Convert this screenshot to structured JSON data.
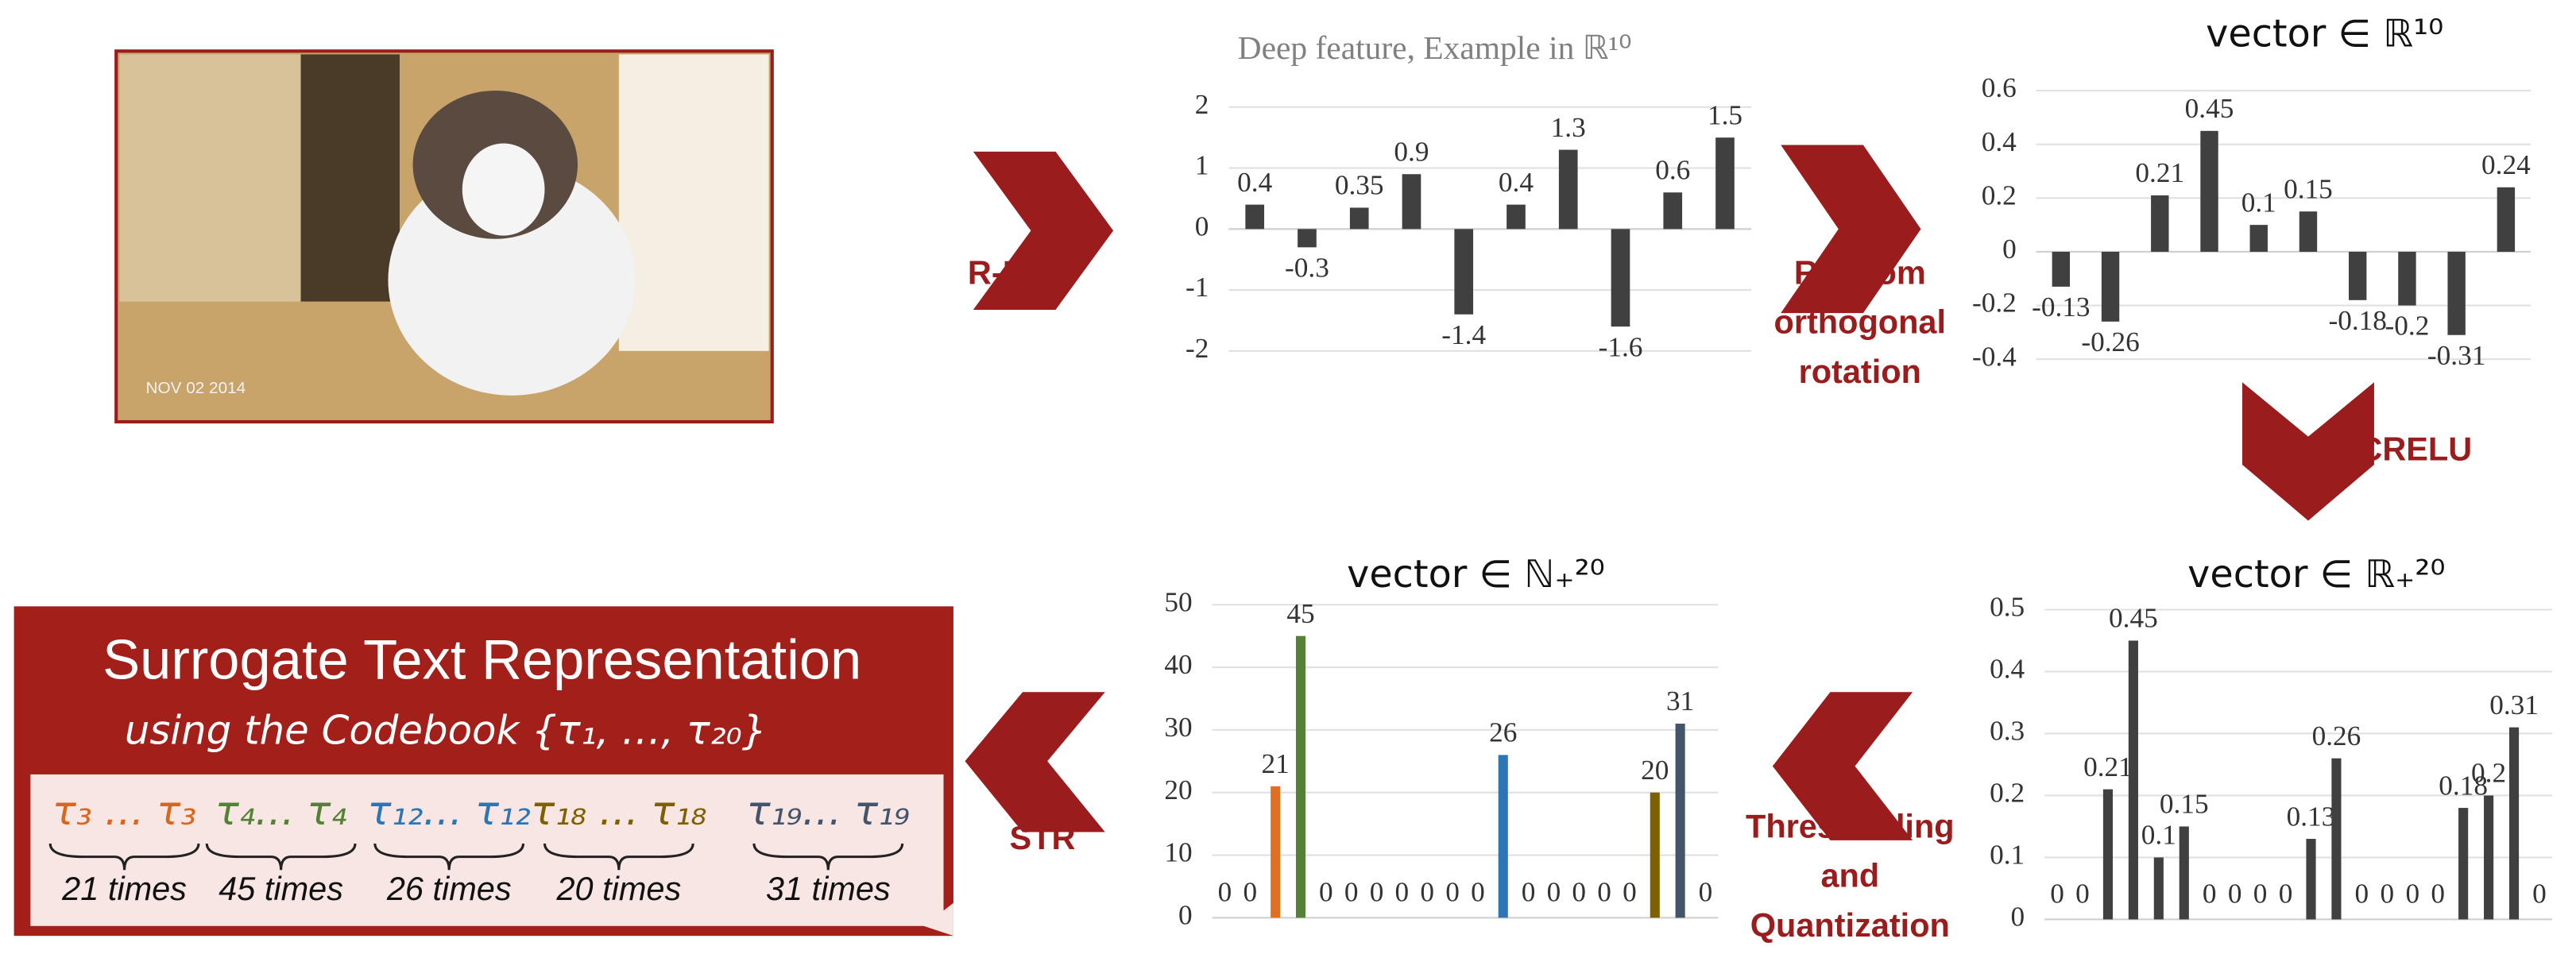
{
  "chart_data": [
    {
      "type": "bar",
      "title": "Deep feature, Example in ℝ¹⁰",
      "values": [
        0.4,
        -0.3,
        0.35,
        0.9,
        -1.4,
        0.4,
        1.3,
        -1.6,
        0.6,
        1.5
      ],
      "color": "#404040",
      "ylim": [
        -2,
        2
      ],
      "yticks": [
        -2,
        -1,
        0,
        1,
        2
      ],
      "grid": true
    },
    {
      "type": "bar",
      "title": "vector ∈ ℝ¹⁰",
      "values": [
        -0.13,
        -0.26,
        0.21,
        0.45,
        0.1,
        0.15,
        -0.18,
        -0.2,
        -0.31,
        0.24
      ],
      "color": "#404040",
      "ylim": [
        -0.4,
        0.6
      ],
      "yticks": [
        -0.4,
        -0.2,
        0,
        0.2,
        0.4,
        0.6
      ],
      "grid": true
    },
    {
      "type": "bar",
      "title": "vector ∈ ℝ₊²⁰",
      "values": [
        0,
        0,
        0.21,
        0.45,
        0.1,
        0.15,
        0,
        0,
        0,
        0,
        0.13,
        0.26,
        0,
        0,
        0,
        0,
        0.18,
        0.2,
        0.31,
        0
      ],
      "color": "#404040",
      "ylim": [
        0,
        0.5
      ],
      "yticks": [
        0,
        0.1,
        0.2,
        0.3,
        0.4,
        0.5
      ],
      "grid": true
    },
    {
      "type": "bar",
      "title": "vector ∈ ℕ₊²⁰",
      "values": [
        0,
        0,
        21,
        45,
        0,
        0,
        0,
        0,
        0,
        0,
        0,
        26,
        0,
        0,
        0,
        0,
        0,
        20,
        31,
        0
      ],
      "colors": [
        "#404040",
        "#404040",
        "#e0701f",
        "#548235",
        "#404040",
        "#404040",
        "#404040",
        "#404040",
        "#404040",
        "#404040",
        "#404040",
        "#2e75b6",
        "#404040",
        "#404040",
        "#404040",
        "#404040",
        "#404040",
        "#7f6000",
        "#44546a",
        "#404040"
      ],
      "ylim": [
        0,
        50
      ],
      "yticks": [
        0,
        10,
        20,
        30,
        40,
        50
      ],
      "grid": true
    }
  ],
  "photo": {
    "date_stamp": "NOV 02 2014"
  },
  "steps": [
    "R-MAC",
    "Random orthogonal rotation",
    "CRELU",
    "Thresholding and Quantization",
    "STR"
  ],
  "str_box": {
    "title": "Surrogate Text Representation",
    "subtitle": "using the Codebook {τ₁, …, τ₂₀}",
    "terms": [
      {
        "text": "τ₃ … τ₃",
        "count": "21 times",
        "color": "#d9661c"
      },
      {
        "text": "τ₄… τ₄",
        "count": "45 times",
        "color": "#548235"
      },
      {
        "text": "τ₁₂… τ₁₂",
        "count": "26 times",
        "color": "#2e75b6"
      },
      {
        "text": "τ₁₈ … τ₁₈",
        "count": "20 times",
        "color": "#7f6000"
      },
      {
        "text": "τ₁₉… τ₁₉",
        "count": "31 times",
        "color": "#44546a"
      }
    ]
  }
}
